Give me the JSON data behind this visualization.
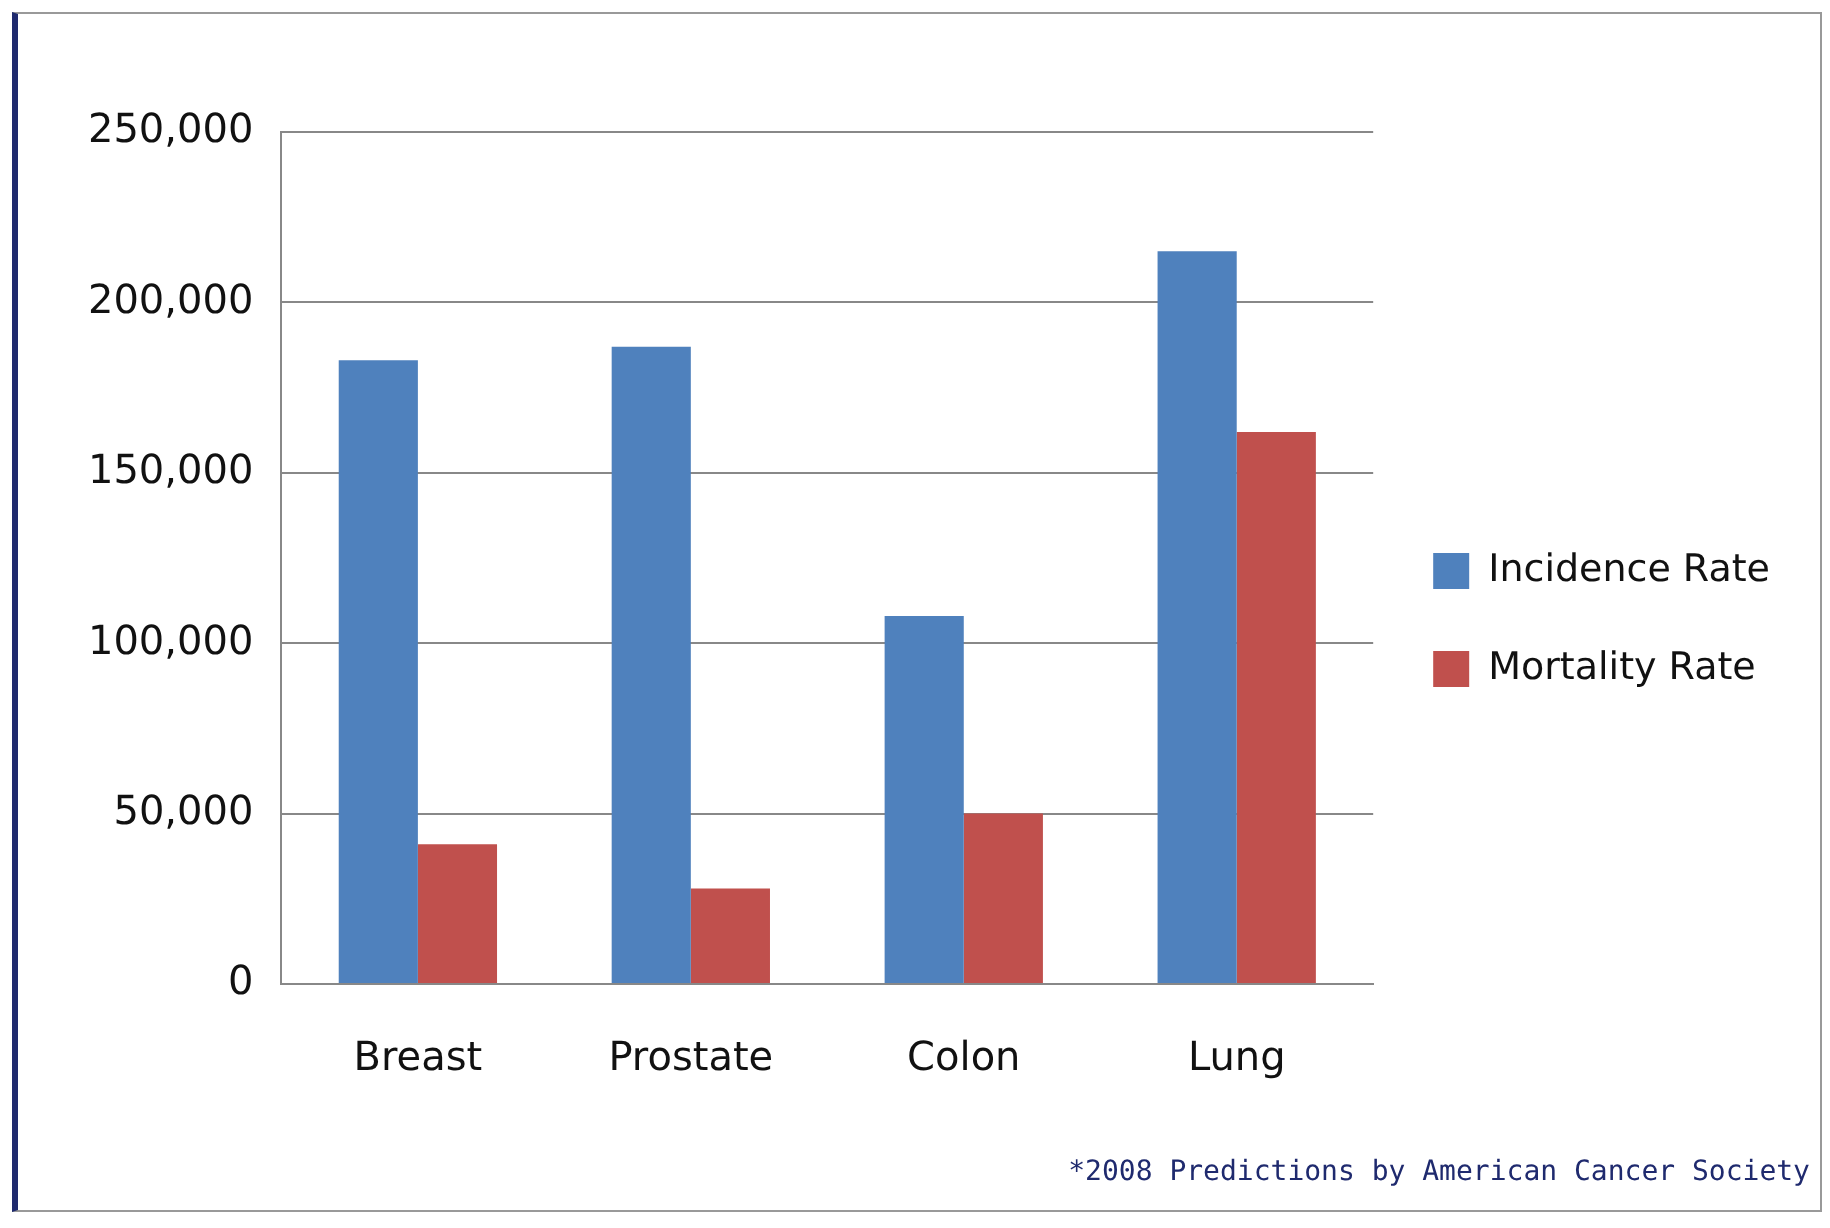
{
  "chart_data": {
    "type": "bar",
    "categories": [
      "Breast",
      "Prostate",
      "Colon",
      "Lung"
    ],
    "series": [
      {
        "name": "Incidence Rate",
        "color": "#4f81bd",
        "values": [
          183000,
          187000,
          108000,
          215000
        ]
      },
      {
        "name": "Mortality Rate",
        "color": "#c0504d",
        "values": [
          41000,
          28000,
          50000,
          162000
        ]
      }
    ],
    "ylim": [
      0,
      250000
    ],
    "yticks": [
      {
        "value": 0,
        "label": "0"
      },
      {
        "value": 50000,
        "label": "50,000"
      },
      {
        "value": 100000,
        "label": "100,000"
      },
      {
        "value": 150000,
        "label": "150,000"
      },
      {
        "value": 200000,
        "label": "200,000"
      },
      {
        "value": 250000,
        "label": "250,000"
      }
    ],
    "grid": "y",
    "legend": "right",
    "annotations": [
      "*2008 Predictions by American Cancer Society"
    ]
  }
}
